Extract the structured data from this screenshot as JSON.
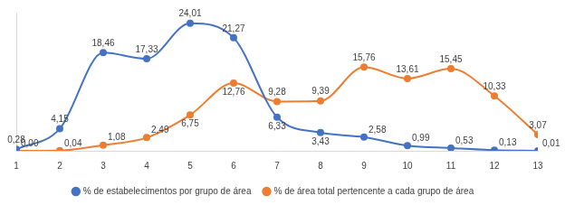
{
  "chart_data": {
    "type": "line",
    "categories": [
      "1",
      "2",
      "3",
      "4",
      "5",
      "6",
      "7",
      "8",
      "9",
      "10",
      "11",
      "12",
      "13"
    ],
    "series": [
      {
        "name": "% de estabelecimentos por grupo de área",
        "color": "#4472c4",
        "marker": "circle",
        "values": [
          0.28,
          4.15,
          18.46,
          17.33,
          24.01,
          21.27,
          6.33,
          3.43,
          2.58,
          0.99,
          0.53,
          0.13,
          0.01
        ],
        "value_labels": [
          "0,28",
          "4,15",
          "18,46",
          "17,33",
          "24,01",
          "21,27",
          "6,33",
          "3,43",
          "2,58",
          "0,99",
          "0,53",
          "0,13",
          "0,01"
        ]
      },
      {
        "name": "% de área total pertencente a cada grupo de área",
        "color": "#ed7d31",
        "marker": "circle",
        "values": [
          0.0,
          0.04,
          1.08,
          2.49,
          6.75,
          12.76,
          9.28,
          9.39,
          15.76,
          13.61,
          15.45,
          10.33,
          3.07
        ],
        "value_labels": [
          "0,00",
          "0,04",
          "1,08",
          "2,49",
          "6,75",
          "12,76",
          "9,28",
          "9,39",
          "15,76",
          "13,61",
          "15,45",
          "10,33",
          "3,07"
        ]
      }
    ],
    "ylim": [
      0,
      26
    ],
    "grid": false,
    "legend": "bottom",
    "data_labels": true,
    "tick_labels": "x",
    "line_style": "smooth"
  }
}
